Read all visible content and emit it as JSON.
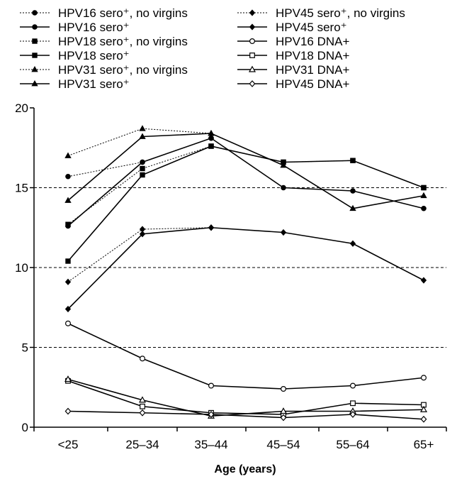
{
  "chart_data": {
    "type": "line",
    "title": "",
    "xlabel": "Age (years)",
    "ylabel": "",
    "categories": [
      "<25",
      "25–34",
      "35–44",
      "45–54",
      "55–64",
      "65+"
    ],
    "ylim": [
      0,
      20
    ],
    "yticks": [
      0,
      5,
      10,
      15,
      20
    ],
    "gridlines": [
      5,
      10,
      15
    ],
    "legend_position": "top",
    "series": [
      {
        "name": "HPV16 sero⁺, no virgins",
        "style": "dotted",
        "marker": "filled-circle",
        "values": [
          15.7,
          16.6,
          18.1,
          null,
          null,
          null
        ]
      },
      {
        "name": "HPV45 sero⁺, no virgins",
        "style": "dotted",
        "marker": "filled-diamond",
        "values": [
          9.1,
          12.4,
          12.5,
          null,
          null,
          null
        ]
      },
      {
        "name": "HPV16 sero⁺",
        "style": "solid",
        "marker": "filled-circle",
        "values": [
          12.6,
          16.6,
          18.1,
          15.0,
          14.8,
          13.7
        ]
      },
      {
        "name": "HPV45 sero⁺",
        "style": "solid",
        "marker": "filled-diamond",
        "values": [
          7.4,
          12.1,
          12.5,
          12.2,
          11.5,
          9.2
        ]
      },
      {
        "name": "HPV18 sero⁺, no virgins",
        "style": "dotted",
        "marker": "filled-square",
        "values": [
          12.7,
          16.2,
          17.6,
          16.6,
          16.7,
          15.0
        ]
      },
      {
        "name": "HPV16 DNA+",
        "style": "solid",
        "marker": "open-circle",
        "values": [
          6.5,
          4.3,
          2.6,
          2.4,
          2.6,
          3.1
        ]
      },
      {
        "name": "HPV18 sero⁺",
        "style": "solid",
        "marker": "filled-square",
        "values": [
          10.4,
          15.8,
          17.6,
          16.6,
          16.7,
          15.0
        ]
      },
      {
        "name": "HPV18 DNA+",
        "style": "solid",
        "marker": "open-square",
        "values": [
          2.9,
          1.3,
          0.9,
          0.8,
          1.5,
          1.4
        ]
      },
      {
        "name": "HPV31 sero⁺, no virgins",
        "style": "dotted",
        "marker": "filled-triangle",
        "values": [
          17.0,
          18.7,
          18.4,
          null,
          null,
          null
        ]
      },
      {
        "name": "HPV31 DNA+",
        "style": "solid",
        "marker": "open-triangle",
        "values": [
          3.0,
          1.7,
          0.7,
          1.0,
          1.0,
          1.1
        ]
      },
      {
        "name": "HPV31 sero⁺",
        "style": "solid",
        "marker": "filled-triangle",
        "values": [
          14.2,
          18.2,
          18.4,
          16.4,
          13.7,
          14.5
        ]
      },
      {
        "name": "HPV45 DNA+",
        "style": "solid",
        "marker": "open-diamond",
        "values": [
          1.0,
          0.9,
          0.8,
          0.6,
          0.8,
          0.5
        ]
      }
    ]
  }
}
